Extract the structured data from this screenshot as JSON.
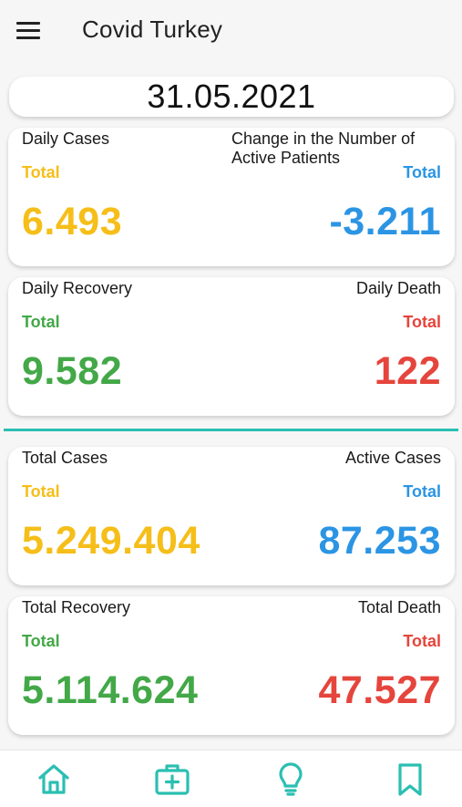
{
  "app": {
    "title": "Covid Turkey",
    "date": "31.05.2021"
  },
  "colors": {
    "yellow": "#f5be19",
    "blue": "#2b95e4",
    "green": "#43a848",
    "red": "#e5453c",
    "teal": "#2bbfb2"
  },
  "cards": [
    {
      "left_label": "Daily Cases",
      "left_sub": "Total",
      "left_value": "6.493",
      "right_label": "Change in the Number of Active Patients",
      "right_sub": "Total",
      "right_value": "-3.211"
    },
    {
      "left_label": "Daily Recovery",
      "left_sub": "Total",
      "left_value": "9.582",
      "right_label": "Daily Death",
      "right_sub": "Total",
      "right_value": "122"
    },
    {
      "left_label": "Total Cases",
      "left_sub": "Total",
      "left_value": "5.249.404",
      "right_label": "Active Cases",
      "right_sub": "Total",
      "right_value": "87.253"
    },
    {
      "left_label": "Total Recovery",
      "left_sub": "Total",
      "left_value": "5.114.624",
      "right_label": "Total Death",
      "right_sub": "Total",
      "right_value": "47.527"
    }
  ],
  "nav": [
    {
      "icon": "home-icon"
    },
    {
      "icon": "medical-kit-icon"
    },
    {
      "icon": "lightbulb-icon"
    },
    {
      "icon": "bookmark-icon"
    }
  ]
}
